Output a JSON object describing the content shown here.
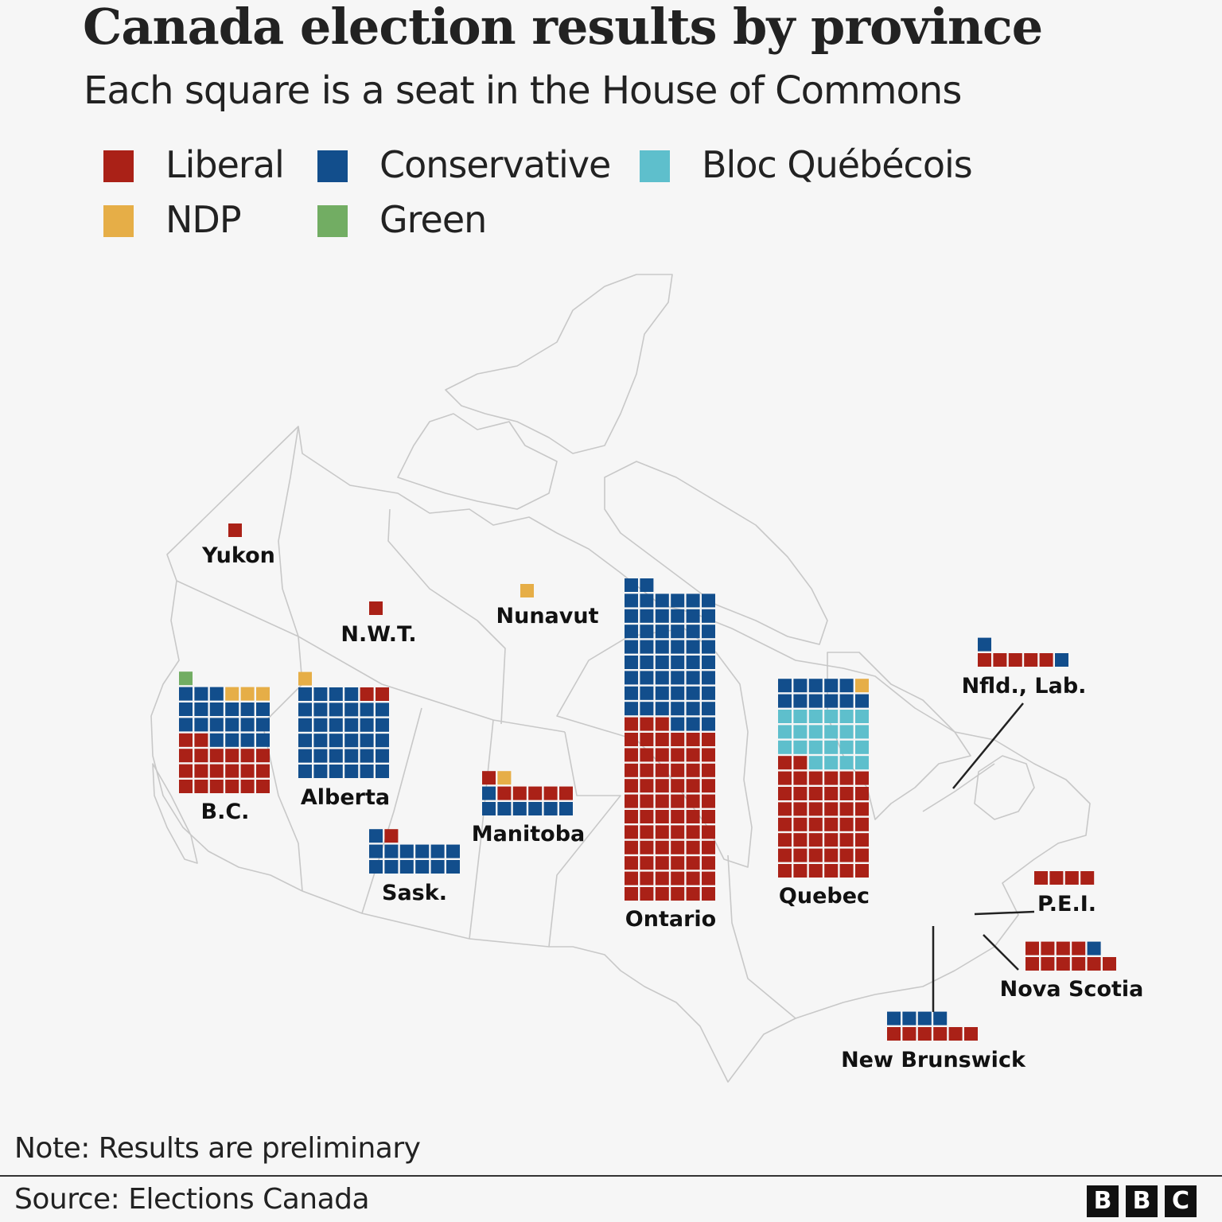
{
  "title": "Canada election results by province",
  "subtitle": "Each square is a seat in the House of Commons",
  "legend": [
    {
      "party": "Liberal",
      "color": "#aa2117"
    },
    {
      "party": "Conservative",
      "color": "#124e8c"
    },
    {
      "party": "Bloc Québécois",
      "color": "#5ebfcc"
    },
    {
      "party": "NDP",
      "color": "#e6ae47"
    },
    {
      "party": "Green",
      "color": "#72ad63"
    }
  ],
  "chart_data": {
    "type": "waffle",
    "unit": "seat",
    "regions": [
      {
        "label": "Yukon",
        "seats": {
          "Liberal": 1,
          "Conservative": 0,
          "Bloc Québécois": 0,
          "NDP": 0,
          "Green": 0
        }
      },
      {
        "label": "N.W.T.",
        "seats": {
          "Liberal": 1,
          "Conservative": 0,
          "Bloc Québécois": 0,
          "NDP": 0,
          "Green": 0
        }
      },
      {
        "label": "Nunavut",
        "seats": {
          "Liberal": 0,
          "Conservative": 0,
          "Bloc Québécois": 0,
          "NDP": 1,
          "Green": 0
        }
      },
      {
        "label": "B.C.",
        "seats": {
          "Liberal": 20,
          "Conservative": 19,
          "Bloc Québécois": 0,
          "NDP": 3,
          "Green": 1
        }
      },
      {
        "label": "Alberta",
        "seats": {
          "Liberal": 2,
          "Conservative": 34,
          "Bloc Québécois": 0,
          "NDP": 1,
          "Green": 0
        }
      },
      {
        "label": "Sask.",
        "seats": {
          "Liberal": 1,
          "Conservative": 13,
          "Bloc Québécois": 0,
          "NDP": 0,
          "Green": 0
        }
      },
      {
        "label": "Manitoba",
        "seats": {
          "Liberal": 6,
          "Conservative": 7,
          "Bloc Québécois": 0,
          "NDP": 1,
          "Green": 0
        }
      },
      {
        "label": "Ontario",
        "seats": {
          "Liberal": 69,
          "Conservative": 53,
          "Bloc Québécois": 0,
          "NDP": 0,
          "Green": 0
        }
      },
      {
        "label": "Quebec",
        "seats": {
          "Liberal": 44,
          "Conservative": 11,
          "Bloc Québécois": 22,
          "NDP": 1,
          "Green": 0
        }
      },
      {
        "label": "Nfld., Lab.",
        "seats": {
          "Liberal": 5,
          "Conservative": 2,
          "Bloc Québécois": 0,
          "NDP": 0,
          "Green": 0
        }
      },
      {
        "label": "P.E.I.",
        "seats": {
          "Liberal": 4,
          "Conservative": 0,
          "Bloc Québécois": 0,
          "NDP": 0,
          "Green": 0
        }
      },
      {
        "label": "Nova Scotia",
        "seats": {
          "Liberal": 10,
          "Conservative": 1,
          "Bloc Québécois": 0,
          "NDP": 0,
          "Green": 0
        }
      },
      {
        "label": "New Brunswick",
        "seats": {
          "Liberal": 6,
          "Conservative": 4,
          "Bloc Québécois": 0,
          "NDP": 0,
          "Green": 0
        }
      }
    ]
  },
  "note": "Note: Results are preliminary",
  "source": "Source: Elections Canada",
  "logo": [
    "B",
    "B",
    "C"
  ]
}
